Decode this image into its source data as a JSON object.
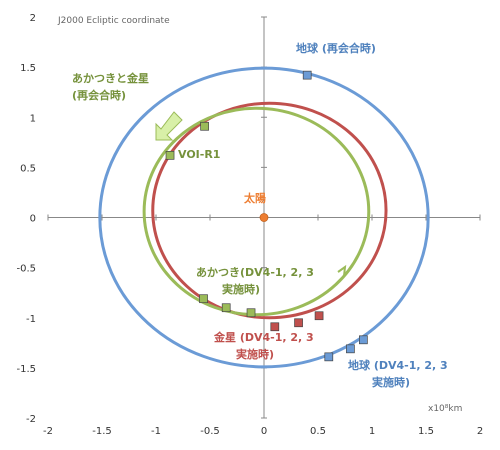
{
  "chart_data": {
    "type": "scatter",
    "title": "",
    "coord_note": "J2000 Ecliptic coordinate",
    "unit_label": "x10⁸km",
    "xlim": [
      -2,
      2
    ],
    "ylim": [
      -2,
      2
    ],
    "x_ticks": [
      "-2",
      "-1.5",
      "-1",
      "-0.5",
      "0",
      "0.5",
      "1",
      "1.5",
      "2"
    ],
    "y_ticks": [
      "2",
      "1.5",
      "1",
      "0.5",
      "0",
      "-0.5",
      "-1",
      "-1.5",
      "-2"
    ],
    "grid": false,
    "colors": {
      "earth": "#6b9bd6",
      "venus": "#c0504d",
      "akatsuki": "#9bbb59",
      "sun": "#ed7d31",
      "earth_text": "#4f81bd",
      "akatsuki_text": "#76923c",
      "venus_text": "#c0504d"
    },
    "orbits": [
      {
        "id": "earth",
        "center": [
          0,
          0
        ],
        "rx": 1.52,
        "ry": 1.49
      },
      {
        "id": "venus",
        "center": [
          0.05,
          0.07
        ],
        "rx": 1.08,
        "ry": 1.07
      },
      {
        "id": "akatsuki",
        "center": [
          -0.07,
          0.06
        ],
        "rx": 1.04,
        "ry": 1.03
      }
    ],
    "series": [
      {
        "id": "earth",
        "points": [
          [
            0.4,
            1.42
          ],
          [
            0.6,
            -1.39
          ],
          [
            0.8,
            -1.31
          ],
          [
            0.92,
            -1.22
          ]
        ]
      },
      {
        "id": "venus",
        "points": [
          [
            0.1,
            -1.09
          ],
          [
            0.32,
            -1.05
          ],
          [
            0.51,
            -0.98
          ]
        ]
      },
      {
        "id": "akatsuki",
        "points": [
          [
            -0.55,
            0.91
          ],
          [
            -0.87,
            0.62
          ],
          [
            -0.56,
            -0.81
          ],
          [
            -0.35,
            -0.9
          ],
          [
            -0.12,
            -0.95
          ]
        ]
      }
    ],
    "sun": [
      0,
      0
    ],
    "annotations": {
      "sun": "太陽",
      "earth_reunion": "地球 (再会合時)",
      "akatsuki_venus_l1": "あかつきと金星",
      "akatsuki_venus_l2": "(再会合時)",
      "voi": "VOI-R1",
      "akatsuki_dv_l1": "あかつき(DV4-1, 2, 3",
      "akatsuki_dv_l2": "実施時)",
      "venus_dv_l1": "金星 (DV4-1, 2, 3",
      "venus_dv_l2": "実施時)",
      "earth_dv_l1": "地球 (DV4-1, 2, 3",
      "earth_dv_l2": "実施時)"
    }
  }
}
